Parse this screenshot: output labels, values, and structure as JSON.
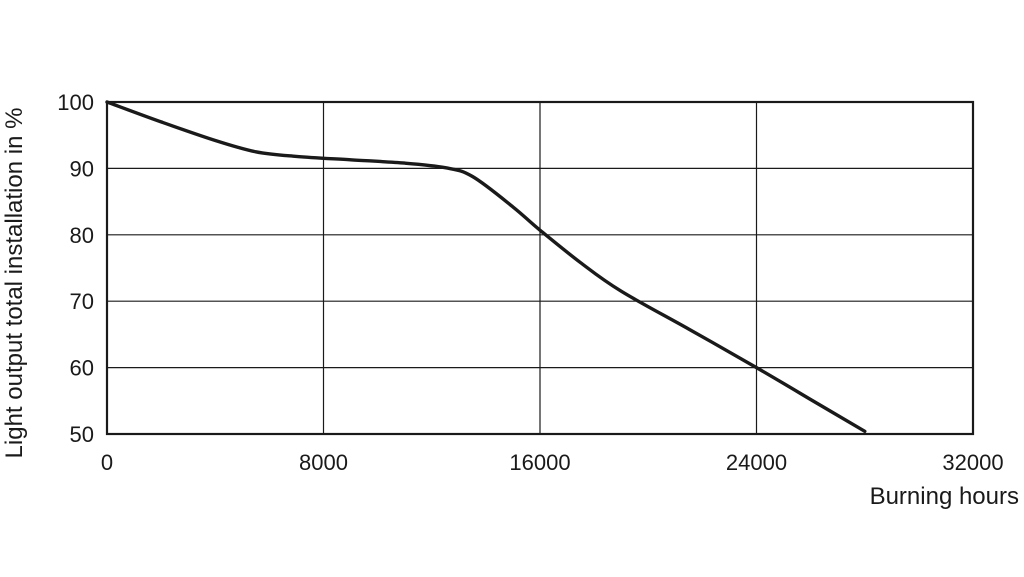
{
  "chart_data": {
    "type": "line",
    "xlabel": "Burning hours",
    "ylabel": "Light output total installation in %",
    "xlim": [
      0,
      32000
    ],
    "ylim": [
      50,
      100
    ],
    "x_ticks": [
      0,
      8000,
      16000,
      24000,
      32000
    ],
    "x_tick_labels": [
      "0",
      "8000",
      "16000",
      "24000",
      "32000"
    ],
    "y_ticks": [
      50,
      60,
      70,
      80,
      90,
      100
    ],
    "y_tick_labels": [
      "50",
      "60",
      "70",
      "80",
      "90",
      "100"
    ],
    "grid": true,
    "legend": "none",
    "line_color": "#1a1a1a",
    "series": [
      {
        "x": [
          0,
          2000,
          4000,
          5500,
          7000,
          9000,
          11000,
          12500,
          13500,
          15000,
          16000,
          17500,
          19000,
          21500,
          24000,
          26000,
          28000
        ],
        "y": [
          100,
          97,
          94.2,
          92.5,
          91.8,
          91.3,
          90.8,
          90.1,
          88.8,
          84.2,
          80.7,
          75.8,
          71.5,
          65.8,
          60,
          55.2,
          50.4
        ]
      }
    ]
  }
}
